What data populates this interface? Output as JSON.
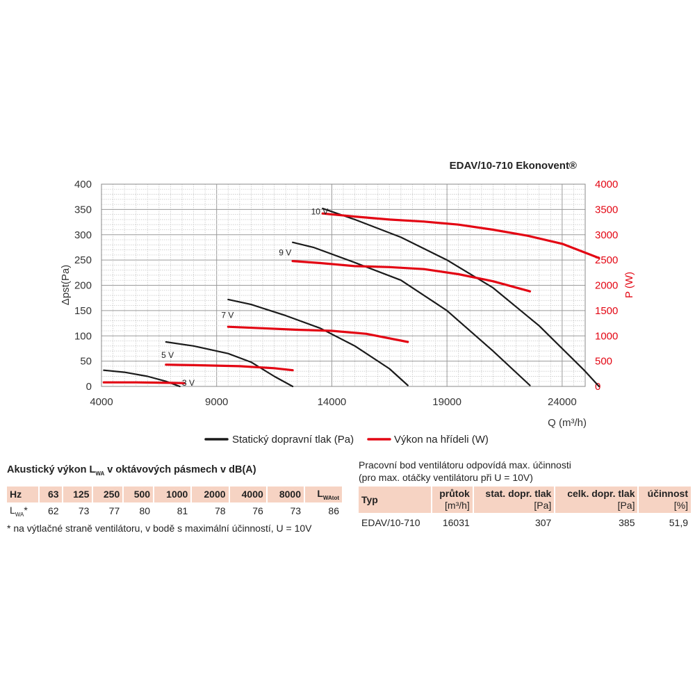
{
  "chart_data": {
    "type": "line",
    "title": "EDAV/10-710 Ekonovent®",
    "xlabel": "Q (m³/h)",
    "ylabel_left": "Δpst(Pa)",
    "ylabel_right": "P (W)",
    "xlim": [
      4000,
      25000
    ],
    "ylim_left": [
      0,
      400
    ],
    "ylim_right": [
      0,
      4000
    ],
    "x_ticks": [
      "4000",
      "9000",
      "14000",
      "19000",
      "24000"
    ],
    "y_ticks_left": [
      "0",
      "50",
      "100",
      "150",
      "200",
      "250",
      "300",
      "350",
      "400"
    ],
    "y_ticks_right": [
      "0",
      "500",
      "1000",
      "1500",
      "2000",
      "2500",
      "3000",
      "3500",
      "4000"
    ],
    "grid": true,
    "legend": [
      {
        "label": "Statický dopravní tlak (Pa)",
        "color": "#1a1a1a"
      },
      {
        "label": "Výkon na hřídeli (W)",
        "color": "#e30613"
      }
    ],
    "series": [
      {
        "name": "10 V",
        "axis": "left",
        "color": "#1a1a1a",
        "points": [
          [
            13600,
            352
          ],
          [
            15000,
            330
          ],
          [
            17000,
            295
          ],
          [
            19000,
            250
          ],
          [
            21000,
            195
          ],
          [
            23000,
            120
          ],
          [
            25000,
            30
          ],
          [
            25600,
            0
          ]
        ]
      },
      {
        "name": "9 V",
        "axis": "left",
        "color": "#1a1a1a",
        "points": [
          [
            12300,
            285
          ],
          [
            13200,
            275
          ],
          [
            15000,
            245
          ],
          [
            17000,
            210
          ],
          [
            19000,
            150
          ],
          [
            21000,
            70
          ],
          [
            22600,
            2
          ]
        ]
      },
      {
        "name": "7 V",
        "axis": "left",
        "color": "#1a1a1a",
        "points": [
          [
            9500,
            172
          ],
          [
            10500,
            162
          ],
          [
            12000,
            140
          ],
          [
            13500,
            115
          ],
          [
            15000,
            80
          ],
          [
            16500,
            35
          ],
          [
            17300,
            2
          ]
        ]
      },
      {
        "name": "5 V",
        "axis": "left",
        "color": "#1a1a1a",
        "points": [
          [
            6800,
            88
          ],
          [
            8000,
            80
          ],
          [
            9500,
            65
          ],
          [
            10500,
            48
          ],
          [
            11500,
            20
          ],
          [
            12300,
            0
          ]
        ]
      },
      {
        "name": "3 V",
        "axis": "left",
        "color": "#1a1a1a",
        "points": [
          [
            4100,
            32
          ],
          [
            5000,
            28
          ],
          [
            6000,
            20
          ],
          [
            6800,
            10
          ],
          [
            7400,
            0
          ]
        ]
      },
      {
        "name": "10 V",
        "axis": "right",
        "color": "#e30613",
        "points": [
          [
            13600,
            3420
          ],
          [
            15000,
            3360
          ],
          [
            16500,
            3300
          ],
          [
            18000,
            3260
          ],
          [
            19500,
            3200
          ],
          [
            21000,
            3100
          ],
          [
            22500,
            2980
          ],
          [
            24000,
            2820
          ],
          [
            25600,
            2540
          ]
        ]
      },
      {
        "name": "9 V",
        "axis": "right",
        "color": "#e30613",
        "points": [
          [
            12300,
            2480
          ],
          [
            13500,
            2440
          ],
          [
            15000,
            2380
          ],
          [
            16500,
            2360
          ],
          [
            18000,
            2320
          ],
          [
            19500,
            2220
          ],
          [
            21000,
            2080
          ],
          [
            22600,
            1880
          ]
        ]
      },
      {
        "name": "7 V",
        "axis": "right",
        "color": "#e30613",
        "points": [
          [
            9500,
            1180
          ],
          [
            11000,
            1150
          ],
          [
            12500,
            1120
          ],
          [
            14000,
            1100
          ],
          [
            15500,
            1040
          ],
          [
            17300,
            880
          ]
        ]
      },
      {
        "name": "5 V",
        "axis": "right",
        "color": "#e30613",
        "points": [
          [
            6800,
            430
          ],
          [
            8000,
            420
          ],
          [
            10000,
            400
          ],
          [
            11500,
            360
          ],
          [
            12300,
            320
          ]
        ]
      },
      {
        "name": "3 V",
        "axis": "right",
        "color": "#e30613",
        "points": [
          [
            4100,
            80
          ],
          [
            5500,
            80
          ],
          [
            7000,
            70
          ],
          [
            7600,
            65
          ]
        ]
      }
    ],
    "curve_labels": [
      {
        "text": "10 V",
        "x": 13100,
        "y": 347
      },
      {
        "text": "9 V",
        "x": 11700,
        "y": 266
      },
      {
        "text": "7 V",
        "x": 9200,
        "y": 142
      },
      {
        "text": "5 V",
        "x": 6600,
        "y": 63
      },
      {
        "text": "3 V",
        "x": 7500,
        "y": 8
      }
    ]
  },
  "acoustic": {
    "title_pre": "Akustický výkon L",
    "title_sub": "WA",
    "title_post": " v oktávových pásmech v dB(A)",
    "headers": [
      "Hz",
      "63",
      "125",
      "250",
      "500",
      "1000",
      "2000",
      "4000",
      "8000"
    ],
    "header_total_main": "L",
    "header_total_sub": "WAtot",
    "row_label_main": "L",
    "row_label_sub": "WA",
    "row_label_suffix": "*",
    "values": [
      "62",
      "73",
      "77",
      "80",
      "81",
      "78",
      "76",
      "73",
      "86"
    ],
    "footnote": "* na výtlačné straně ventilátoru, v bodě s maximální účinností, U = 10V"
  },
  "operating_point": {
    "note_line1": "Pracovní bod ventilátoru odpovídá max. účinnosti",
    "note_line2": "(pro max. otáčky ventilátoru při U = 10V)",
    "col_type": "Typ",
    "col_flow": "průtok",
    "col_flow_unit": "[m³/h]",
    "col_static": "stat. dopr. tlak",
    "col_static_unit": "[Pa]",
    "col_total": "celk. dopr. tlak",
    "col_total_unit": "[Pa]",
    "col_eff": "účinnost",
    "col_eff_unit": "[%]",
    "row": {
      "type": "EDAV/10-710",
      "flow": "16031",
      "static": "307",
      "total": "385",
      "eff": "51,9"
    }
  }
}
